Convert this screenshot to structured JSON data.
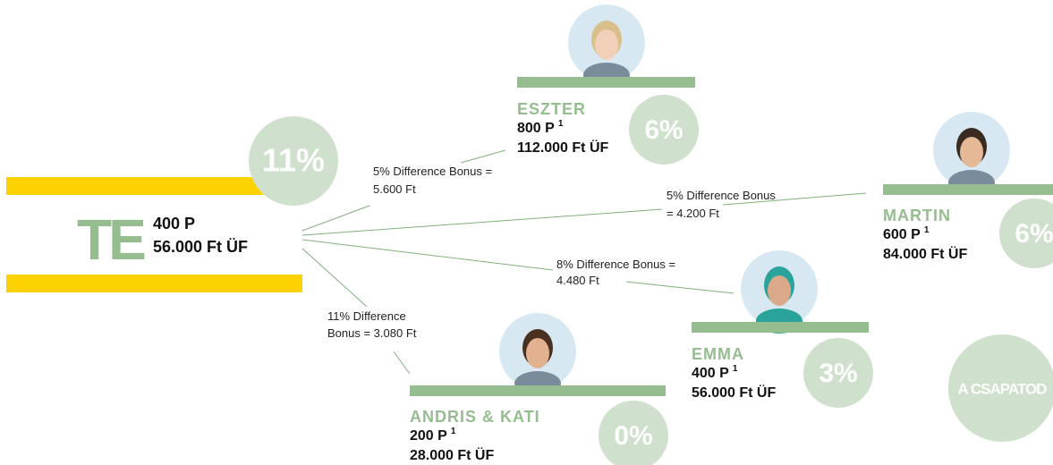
{
  "you": {
    "label": "TE",
    "points": "400 P",
    "amount": "56.000 Ft ÜF",
    "percent": "11%"
  },
  "nodes": [
    {
      "name": "ESZTER",
      "points": "800 P",
      "note": "1",
      "amount": "112.000 Ft ÜF",
      "percent": "6%"
    },
    {
      "name": "MARTIN",
      "points": "600 P",
      "note": "1",
      "amount": "84.000 Ft ÜF",
      "percent": "6%"
    },
    {
      "name": "EMMA",
      "points": "400 P",
      "note": "1",
      "amount": "56.000 Ft ÜF",
      "percent": "3%"
    },
    {
      "name": "ANDRIS & KATI",
      "points": "200 P",
      "note": "1",
      "amount": "28.000 Ft ÜF",
      "percent": "0%"
    }
  ],
  "edges": [
    {
      "lines": [
        "5% Difference Bonus =",
        "5.600 Ft"
      ]
    },
    {
      "lines": [
        "5% Difference Bonus",
        "= 4.200 Ft"
      ]
    },
    {
      "lines": [
        "8% Difference Bonus =",
        "4.480 Ft"
      ]
    },
    {
      "lines": [
        "11% Difference",
        "Bonus = 3.080 Ft"
      ]
    }
  ],
  "team_label": "A CSAPATOD"
}
